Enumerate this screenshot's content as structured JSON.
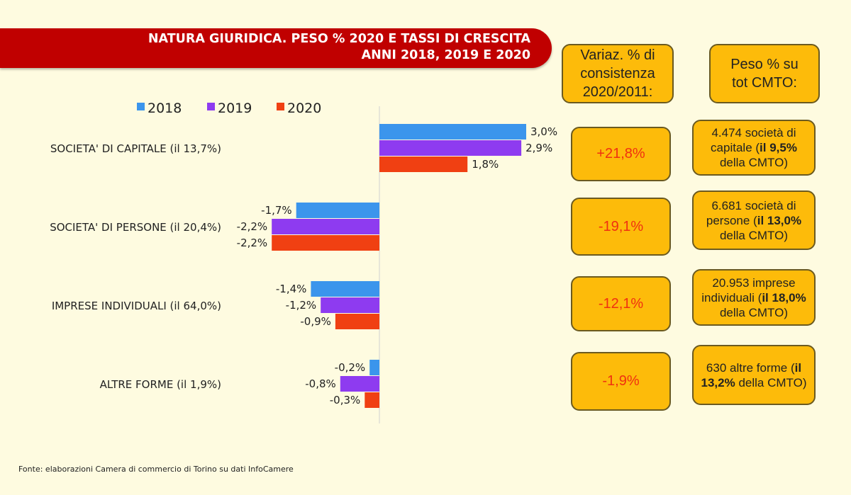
{
  "title_line1": "NATURA GIURIDICA. PESO % 2020 E TASSI DI CRESCITA",
  "title_line2": "ANNI 2018, 2019 E 2020",
  "chart_data": {
    "type": "bar",
    "orientation": "horizontal",
    "categories": [
      "SOCIETA' DI CAPITALE (il 13,7%)",
      "SOCIETA' DI PERSONE (il 20,4%)",
      "IMPRESE INDIVIDUALI (il 64,0%)",
      "ALTRE FORME (il 1,9%)"
    ],
    "series": [
      {
        "name": "2018",
        "color": "#3b95ec",
        "values": [
          3.0,
          -1.7,
          -1.4,
          -0.2
        ],
        "labels": [
          "3,0%",
          "-1,7%",
          "-1,4%",
          "-0,2%"
        ]
      },
      {
        "name": "2019",
        "color": "#8e3bf0",
        "values": [
          2.9,
          -2.2,
          -1.2,
          -0.8
        ],
        "labels": [
          "2,9%",
          "-2,2%",
          "-1,2%",
          "-0,8%"
        ]
      },
      {
        "name": "2020",
        "color": "#f04012",
        "values": [
          1.8,
          -2.2,
          -0.9,
          -0.3
        ],
        "labels": [
          "1,8%",
          "-2,2%",
          "-0,9%",
          "-0,3%"
        ]
      }
    ],
    "legend_position": "top",
    "grid": false
  },
  "side": {
    "var_header": "Variaz. % di consistenza 2020/2011:",
    "peso_header": "Peso % su tot CMTO:",
    "rows": [
      {
        "var": "+21,8%",
        "peso_a": "4.474 società di capitale (",
        "peso_b": "il 9,5%",
        "peso_c": " della CMTO)"
      },
      {
        "var": "-19,1%",
        "peso_a": "6.681 società di persone (",
        "peso_b": "il 13,0%",
        "peso_c": " della CMTO)"
      },
      {
        "var": "-12,1%",
        "peso_a": "20.953 imprese individuali (",
        "peso_b": "il 18,0%",
        "peso_c": " della CMTO)"
      },
      {
        "var": "-1,9%",
        "peso_a": "630 altre forme (",
        "peso_b": "il 13,2%",
        "peso_c": " della CMTO)"
      }
    ]
  },
  "source": "Fonte: elaborazioni Camera di commercio di Torino su dati InfoCamere"
}
